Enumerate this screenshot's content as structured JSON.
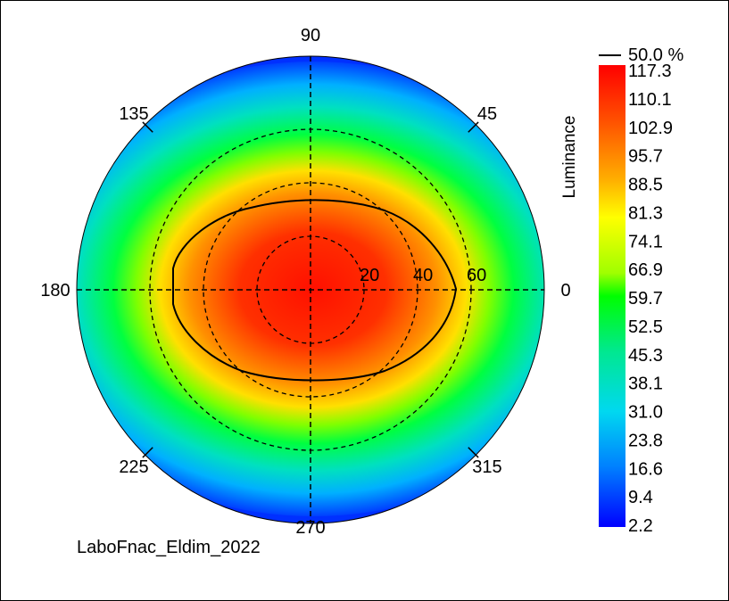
{
  "chart_data": {
    "type": "heatmap",
    "subtype": "polar",
    "quantity": "Luminance",
    "colorbar_title": "Luminance",
    "contour_label": "50.0 %",
    "colorbar_ticks": [
      "117.3",
      "110.1",
      "102.9",
      "95.7",
      "88.5",
      "81.3",
      "74.1",
      "66.9",
      "59.7",
      "52.5",
      "45.3",
      "38.1",
      "31.0",
      "23.8",
      "16.6",
      "9.4",
      "2.2"
    ],
    "value_range": [
      2.2,
      117.3
    ],
    "azimuth_labels": [
      {
        "deg": 0,
        "label": "0"
      },
      {
        "deg": 45,
        "label": "45"
      },
      {
        "deg": 90,
        "label": "90"
      },
      {
        "deg": 135,
        "label": "135"
      },
      {
        "deg": 180,
        "label": "180"
      },
      {
        "deg": 225,
        "label": "225"
      },
      {
        "deg": 270,
        "label": "270"
      },
      {
        "deg": 315,
        "label": "315"
      }
    ],
    "radial_rings": [
      20,
      40,
      60
    ],
    "radial_labels": [
      "20",
      "40",
      "60"
    ],
    "colors": [
      "#0000ff",
      "#0050ff",
      "#00a0ff",
      "#00d8e8",
      "#00e890",
      "#00ff20",
      "#80ff00",
      "#e0ff00",
      "#ffe000",
      "#ff9000",
      "#ff3000",
      "#ff0000"
    ],
    "footer": "LaboFnac_Eldim_2022"
  }
}
